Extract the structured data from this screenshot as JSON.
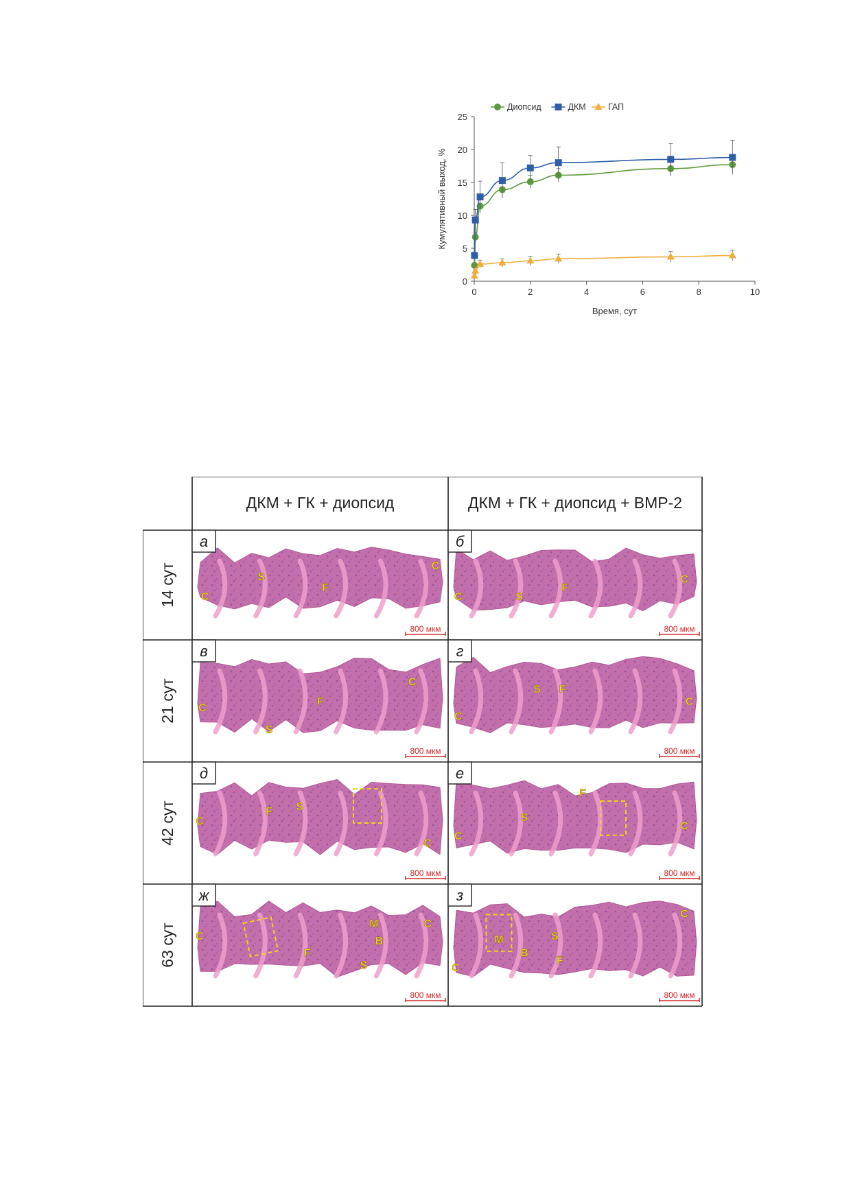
{
  "chart_data": {
    "type": "line",
    "title": "",
    "xlabel": "Время, сут",
    "ylabel": "Кумулятивный выход, %",
    "xlim": [
      0,
      10
    ],
    "ylim": [
      0,
      25
    ],
    "xticks": [
      0,
      2,
      4,
      6,
      8,
      10
    ],
    "yticks": [
      0,
      5,
      10,
      15,
      20,
      25
    ],
    "grid": false,
    "legend_position": "top",
    "series": [
      {
        "name": "Диопсид",
        "color": "#5a9a3c",
        "marker": "circle",
        "x": [
          0.01,
          0.04,
          0.21,
          1,
          2,
          3,
          7,
          9.2
        ],
        "y": [
          2.4,
          6.7,
          11.4,
          13.9,
          15.1,
          16.1,
          17.1,
          17.7
        ],
        "err": [
          0.4,
          0.7,
          1.0,
          1.2,
          1.0,
          1.0,
          1.1,
          1.2
        ]
      },
      {
        "name": "ДКМ",
        "color": "#2f5ea8",
        "marker": "square",
        "x": [
          0.01,
          0.04,
          0.21,
          1,
          2,
          3,
          7,
          9.2
        ],
        "y": [
          3.9,
          9.3,
          12.8,
          15.3,
          17.2,
          18.0,
          18.5,
          18.8
        ],
        "err": [
          0.5,
          1.6,
          2.4,
          2.7,
          1.9,
          2.4,
          2.4,
          2.6
        ]
      },
      {
        "name": "ГАП",
        "color": "#f0ae3c",
        "marker": "triangle",
        "x": [
          0.01,
          0.04,
          0.21,
          1,
          2,
          3,
          7,
          9.2
        ],
        "y": [
          0.8,
          1.6,
          2.6,
          2.8,
          3.1,
          3.4,
          3.7,
          3.9
        ],
        "err": [
          0.3,
          0.5,
          0.6,
          0.6,
          0.7,
          0.7,
          0.8,
          0.8
        ]
      }
    ]
  },
  "histology": {
    "col_headers": [
      "ДКМ + ГК + диопсид",
      "ДКМ + ГК + диопсид + BMP-2"
    ],
    "row_headers": [
      "14 сут",
      "21 сут",
      "42 сут",
      "63 сут"
    ],
    "scale_bar": "800 мкм",
    "label_color": "#f3d21b",
    "scale_color": "#d42a2a",
    "panels": [
      {
        "letter": "а",
        "labels": [
          "C",
          "S",
          "F",
          "C"
        ]
      },
      {
        "letter": "б",
        "labels": [
          "C",
          "S",
          "F",
          "C"
        ]
      },
      {
        "letter": "в",
        "labels": [
          "C",
          "F",
          "S",
          "C"
        ]
      },
      {
        "letter": "г",
        "labels": [
          "C",
          "S",
          "F",
          "C"
        ]
      },
      {
        "letter": "д",
        "labels": [
          "C",
          "F",
          "S",
          "C"
        ]
      },
      {
        "letter": "е",
        "labels": [
          "C",
          "S",
          "F",
          "C"
        ]
      },
      {
        "letter": "ж",
        "labels": [
          "C",
          "F",
          "M",
          "B",
          "S",
          "C"
        ]
      },
      {
        "letter": "з",
        "labels": [
          "C",
          "M",
          "B",
          "S",
          "F",
          "C"
        ]
      }
    ]
  }
}
